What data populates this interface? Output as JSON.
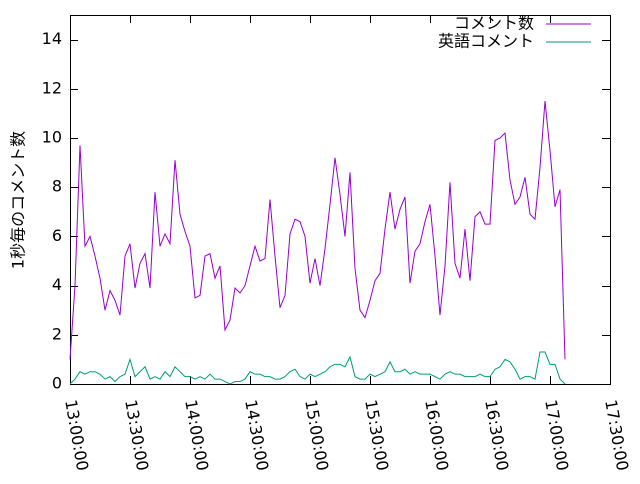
{
  "chart_data": {
    "type": "line",
    "ylabel": "1秒毎のコメント数",
    "xlabel": "",
    "title": "",
    "ylim": [
      0,
      15
    ],
    "xlim_seconds": [
      46800,
      63000
    ],
    "y_ticks": [
      0,
      2,
      4,
      6,
      8,
      10,
      12,
      14
    ],
    "x_ticks": [
      {
        "t": 46800,
        "label": "13:00:00"
      },
      {
        "t": 48600,
        "label": "13:30:00"
      },
      {
        "t": 50400,
        "label": "14:00:00"
      },
      {
        "t": 52200,
        "label": "14:30:00"
      },
      {
        "t": 54000,
        "label": "15:00:00"
      },
      {
        "t": 55800,
        "label": "15:30:00"
      },
      {
        "t": 57600,
        "label": "16:00:00"
      },
      {
        "t": 59400,
        "label": "16:30:00"
      },
      {
        "t": 61200,
        "label": "17:00:00"
      },
      {
        "t": 63000,
        "label": "17:30:00"
      }
    ],
    "grid": false,
    "legend_position": "top-right",
    "series": [
      {
        "name": "コメント数",
        "color": "#9400d3",
        "points": [
          [
            46800,
            1.0
          ],
          [
            46950,
            4.0
          ],
          [
            47100,
            9.7
          ],
          [
            47250,
            5.6
          ],
          [
            47400,
            6.0
          ],
          [
            47550,
            5.2
          ],
          [
            47700,
            4.3
          ],
          [
            47850,
            3.0
          ],
          [
            48000,
            3.8
          ],
          [
            48150,
            3.4
          ],
          [
            48300,
            2.8
          ],
          [
            48450,
            5.2
          ],
          [
            48600,
            5.7
          ],
          [
            48750,
            3.9
          ],
          [
            48900,
            4.9
          ],
          [
            49050,
            5.3
          ],
          [
            49200,
            3.9
          ],
          [
            49350,
            7.8
          ],
          [
            49500,
            5.6
          ],
          [
            49650,
            6.1
          ],
          [
            49800,
            5.7
          ],
          [
            49950,
            9.1
          ],
          [
            50100,
            6.9
          ],
          [
            50250,
            6.2
          ],
          [
            50400,
            5.6
          ],
          [
            50550,
            3.5
          ],
          [
            50700,
            3.6
          ],
          [
            50850,
            5.2
          ],
          [
            51000,
            5.3
          ],
          [
            51150,
            4.3
          ],
          [
            51300,
            4.8
          ],
          [
            51450,
            2.2
          ],
          [
            51600,
            2.6
          ],
          [
            51750,
            3.9
          ],
          [
            51900,
            3.7
          ],
          [
            52050,
            4.0
          ],
          [
            52200,
            4.8
          ],
          [
            52350,
            5.6
          ],
          [
            52500,
            5.0
          ],
          [
            52650,
            5.1
          ],
          [
            52800,
            7.5
          ],
          [
            52950,
            5.2
          ],
          [
            53100,
            3.1
          ],
          [
            53250,
            3.6
          ],
          [
            53400,
            6.1
          ],
          [
            53550,
            6.7
          ],
          [
            53700,
            6.6
          ],
          [
            53850,
            6.0
          ],
          [
            54000,
            4.1
          ],
          [
            54150,
            5.1
          ],
          [
            54300,
            4.0
          ],
          [
            54450,
            5.5
          ],
          [
            54600,
            7.3
          ],
          [
            54750,
            9.2
          ],
          [
            54900,
            7.7
          ],
          [
            55050,
            6.0
          ],
          [
            55200,
            8.6
          ],
          [
            55350,
            4.7
          ],
          [
            55500,
            3.0
          ],
          [
            55650,
            2.7
          ],
          [
            55800,
            3.4
          ],
          [
            55950,
            4.2
          ],
          [
            56100,
            4.5
          ],
          [
            56250,
            6.3
          ],
          [
            56400,
            7.8
          ],
          [
            56550,
            6.3
          ],
          [
            56700,
            7.1
          ],
          [
            56850,
            7.6
          ],
          [
            57000,
            4.1
          ],
          [
            57150,
            5.4
          ],
          [
            57300,
            5.7
          ],
          [
            57450,
            6.6
          ],
          [
            57600,
            7.3
          ],
          [
            57750,
            5.2
          ],
          [
            57900,
            2.8
          ],
          [
            58050,
            4.8
          ],
          [
            58200,
            8.2
          ],
          [
            58350,
            4.9
          ],
          [
            58500,
            4.3
          ],
          [
            58650,
            6.3
          ],
          [
            58800,
            4.2
          ],
          [
            58950,
            6.8
          ],
          [
            59100,
            7.0
          ],
          [
            59250,
            6.5
          ],
          [
            59400,
            6.5
          ],
          [
            59550,
            9.9
          ],
          [
            59700,
            10.0
          ],
          [
            59850,
            10.2
          ],
          [
            60000,
            8.3
          ],
          [
            60150,
            7.3
          ],
          [
            60300,
            7.6
          ],
          [
            60450,
            8.4
          ],
          [
            60600,
            6.9
          ],
          [
            60750,
            6.7
          ],
          [
            60900,
            8.8
          ],
          [
            61050,
            11.5
          ],
          [
            61200,
            9.5
          ],
          [
            61350,
            7.2
          ],
          [
            61500,
            7.9
          ],
          [
            61650,
            1.0
          ]
        ]
      },
      {
        "name": "英語コメント",
        "color": "#009e73",
        "points": [
          [
            46800,
            0.0
          ],
          [
            46950,
            0.2
          ],
          [
            47100,
            0.5
          ],
          [
            47250,
            0.4
          ],
          [
            47400,
            0.5
          ],
          [
            47550,
            0.5
          ],
          [
            47700,
            0.4
          ],
          [
            47850,
            0.2
          ],
          [
            48000,
            0.3
          ],
          [
            48150,
            0.1
          ],
          [
            48300,
            0.3
          ],
          [
            48450,
            0.4
          ],
          [
            48600,
            1.0
          ],
          [
            48750,
            0.3
          ],
          [
            48900,
            0.5
          ],
          [
            49050,
            0.7
          ],
          [
            49200,
            0.2
          ],
          [
            49350,
            0.3
          ],
          [
            49500,
            0.2
          ],
          [
            49650,
            0.5
          ],
          [
            49800,
            0.3
          ],
          [
            49950,
            0.7
          ],
          [
            50100,
            0.5
          ],
          [
            50250,
            0.3
          ],
          [
            50400,
            0.3
          ],
          [
            50550,
            0.2
          ],
          [
            50700,
            0.3
          ],
          [
            50850,
            0.2
          ],
          [
            51000,
            0.4
          ],
          [
            51150,
            0.2
          ],
          [
            51300,
            0.2
          ],
          [
            51450,
            0.1
          ],
          [
            51600,
            0.0
          ],
          [
            51750,
            0.1
          ],
          [
            51900,
            0.1
          ],
          [
            52050,
            0.2
          ],
          [
            52200,
            0.5
          ],
          [
            52350,
            0.4
          ],
          [
            52500,
            0.4
          ],
          [
            52650,
            0.3
          ],
          [
            52800,
            0.3
          ],
          [
            52950,
            0.2
          ],
          [
            53100,
            0.2
          ],
          [
            53250,
            0.3
          ],
          [
            53400,
            0.5
          ],
          [
            53550,
            0.6
          ],
          [
            53700,
            0.3
          ],
          [
            53850,
            0.2
          ],
          [
            54000,
            0.4
          ],
          [
            54150,
            0.3
          ],
          [
            54300,
            0.4
          ],
          [
            54450,
            0.5
          ],
          [
            54600,
            0.7
          ],
          [
            54750,
            0.8
          ],
          [
            54900,
            0.8
          ],
          [
            55050,
            0.7
          ],
          [
            55200,
            1.1
          ],
          [
            55350,
            0.3
          ],
          [
            55500,
            0.2
          ],
          [
            55650,
            0.2
          ],
          [
            55800,
            0.4
          ],
          [
            55950,
            0.3
          ],
          [
            56100,
            0.4
          ],
          [
            56250,
            0.5
          ],
          [
            56400,
            0.9
          ],
          [
            56550,
            0.5
          ],
          [
            56700,
            0.5
          ],
          [
            56850,
            0.6
          ],
          [
            57000,
            0.4
          ],
          [
            57150,
            0.5
          ],
          [
            57300,
            0.4
          ],
          [
            57450,
            0.4
          ],
          [
            57600,
            0.4
          ],
          [
            57750,
            0.3
          ],
          [
            57900,
            0.2
          ],
          [
            58050,
            0.4
          ],
          [
            58200,
            0.5
          ],
          [
            58350,
            0.4
          ],
          [
            58500,
            0.4
          ],
          [
            58650,
            0.3
          ],
          [
            58800,
            0.3
          ],
          [
            58950,
            0.3
          ],
          [
            59100,
            0.4
          ],
          [
            59250,
            0.3
          ],
          [
            59400,
            0.3
          ],
          [
            59550,
            0.6
          ],
          [
            59700,
            0.7
          ],
          [
            59850,
            1.0
          ],
          [
            60000,
            0.9
          ],
          [
            60150,
            0.6
          ],
          [
            60300,
            0.2
          ],
          [
            60450,
            0.3
          ],
          [
            60600,
            0.3
          ],
          [
            60750,
            0.2
          ],
          [
            60900,
            1.3
          ],
          [
            61050,
            1.3
          ],
          [
            61200,
            0.8
          ],
          [
            61350,
            0.8
          ],
          [
            61500,
            0.2
          ],
          [
            61650,
            0.0
          ]
        ]
      }
    ]
  }
}
